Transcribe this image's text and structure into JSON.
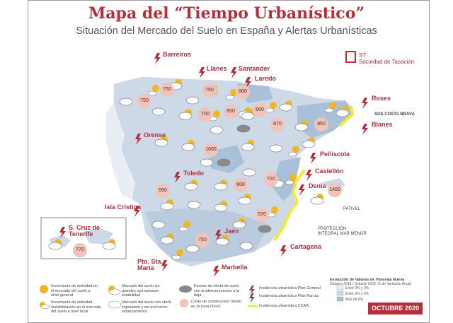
{
  "title": "Mapa del “Tiempo Urbanístico”",
  "subtitle": "Situación del Mercado del Suelo en España y Alertas Urbanísticas",
  "brand": {
    "short": "ST",
    "name": "Sociedad de Tasación"
  },
  "alerts": [
    {
      "name": "Barreiros"
    },
    {
      "name": "Llanes"
    },
    {
      "name": "Santander"
    },
    {
      "name": "Laredo"
    },
    {
      "name": "Roses"
    },
    {
      "name": "Blanes"
    },
    {
      "name": "Orense"
    },
    {
      "name": "Peñíscola"
    },
    {
      "name": "Toledo"
    },
    {
      "name": "Castellón"
    },
    {
      "name": "Denia"
    },
    {
      "name": "Isla Cristina"
    },
    {
      "name": "S. Cruz de Tenerife"
    },
    {
      "name": "Jaén"
    },
    {
      "name": "Cartagena"
    },
    {
      "name": "Pto. Sta. María"
    },
    {
      "name": "Marbella"
    }
  ],
  "notes": {
    "costa_brava": "SOS COSTA BRAVA",
    "pativel": "PATIVEL",
    "proteccion": "PROTECCIÓN INTEGRAL MAR MENOR"
  },
  "prices": [
    {
      "value": "750"
    },
    {
      "value": "750"
    },
    {
      "value": "800"
    },
    {
      "value": "750"
    },
    {
      "value": "700"
    },
    {
      "value": "650"
    },
    {
      "value": "800"
    },
    {
      "value": "670"
    },
    {
      "value": "950"
    },
    {
      "value": "1000"
    },
    {
      "value": "600"
    },
    {
      "value": "720"
    },
    {
      "value": "1400"
    },
    {
      "value": "550"
    },
    {
      "value": "570"
    },
    {
      "value": "750"
    },
    {
      "value": "770"
    }
  ],
  "legend": {
    "sun": "Incremento de actividad en el mercado del suelo a nivel general",
    "sun_cloud": "Mercado del suelo sin grandes operaciones: estabilidad",
    "heavy_cloud": "Exceso de oferta de suelo con tendencia precios a la baja",
    "local": "Incremento de actividad /estabilización en el mercado del suelo a nivel local",
    "cloud": "Mercado del suelo con stock importante y sin evolución: estancamiento",
    "cost": "Coste de construcción medio en la zona (€/m²)",
    "plan_general": "Incidencia urbanística Plan General",
    "plan_parcial": "Incidencia urbanística Plan Parcial",
    "ccaa": "Incidencia urbanística CCAA",
    "evolucion_title": "Evolución de Valores de Vivienda Nueva",
    "evolucion_sub": "Octubre 2019 / Octubre 2020. % de Variación Anual",
    "range1": "Entre 0% y 3%",
    "range2": "Entre 3% y 6%",
    "range3": "Más de 6%"
  },
  "date_badge": "OCTUBRE 2020",
  "colors": {
    "accent": "#b3303b",
    "land": "#cdd9e6",
    "land_dark": "#a9c1d8",
    "coast": "#f1ea3a",
    "sun": "#f2b61f"
  }
}
